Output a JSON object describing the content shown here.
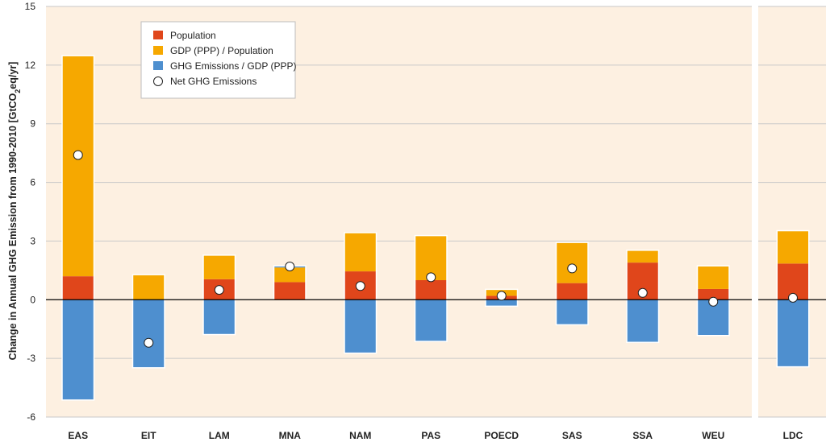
{
  "chart_data": {
    "type": "bar",
    "stacked": true,
    "ylabel_parts": [
      "Change in Annual GHG Emission from 1990-2010 [GtCO",
      "2",
      "eq/yr]"
    ],
    "ylim": [
      -6,
      15
    ],
    "yticks": [
      -6,
      -3,
      0,
      3,
      6,
      9,
      12,
      15
    ],
    "grid": true,
    "legend_position": "top-left",
    "categories": [
      "EAS",
      "EIT",
      "LAM",
      "MNA",
      "NAM",
      "PAS",
      "POECD",
      "SAS",
      "SSA",
      "WEU",
      "LDC"
    ],
    "separated_categories": [
      "LDC"
    ],
    "series": [
      {
        "name": "Population",
        "color": "#e0461b",
        "values": [
          1.2,
          0,
          1.05,
          0.9,
          1.45,
          1.0,
          0.2,
          0.85,
          1.9,
          0.55,
          1.85
        ]
      },
      {
        "name": "GDP (PPP) / Population",
        "color": "#f6a800",
        "values": [
          11.25,
          1.25,
          1.2,
          0.75,
          1.95,
          2.25,
          0.3,
          2.05,
          0.6,
          1.15,
          1.65
        ]
      },
      {
        "name": "GHG Emissions / GDP (PPP)",
        "color": "#4e8fcf",
        "values": [
          -5.1,
          -3.45,
          -1.75,
          0.05,
          -2.7,
          -2.1,
          -0.3,
          -1.25,
          -2.15,
          -1.8,
          -3.4
        ]
      }
    ],
    "net_emissions": {
      "name": "Net GHG Emissions",
      "values": [
        7.4,
        -2.2,
        0.5,
        1.7,
        0.7,
        1.15,
        0.2,
        1.6,
        0.35,
        -0.1,
        0.1
      ]
    },
    "colors": {
      "panel_background": "#fdf0e1",
      "gridline": "#c9c9c9",
      "zero_line": "#000000"
    }
  }
}
